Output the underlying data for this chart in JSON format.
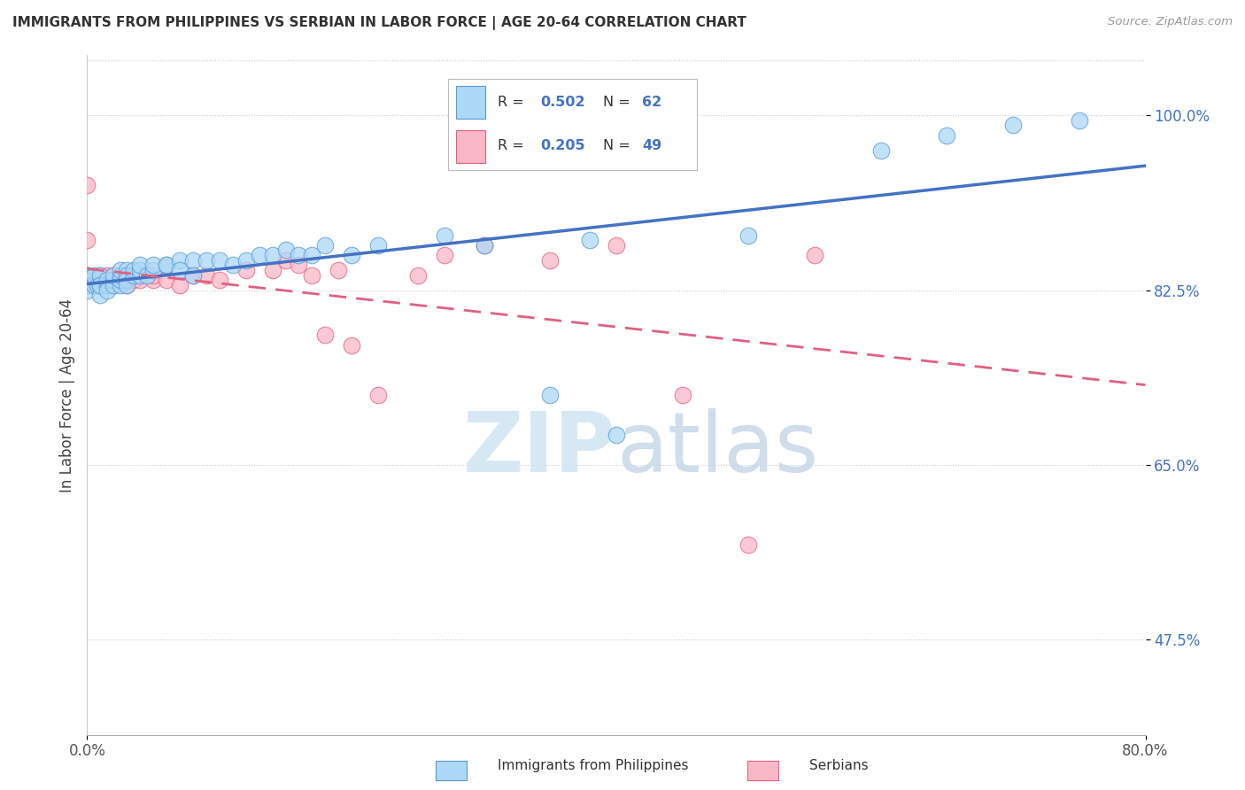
{
  "title": "IMMIGRANTS FROM PHILIPPINES VS SERBIAN IN LABOR FORCE | AGE 20-64 CORRELATION CHART",
  "source": "Source: ZipAtlas.com",
  "ylabel": "In Labor Force | Age 20-64",
  "x_min": 0.0,
  "x_max": 0.8,
  "y_min": 0.38,
  "y_max": 1.06,
  "y_ticks": [
    0.475,
    0.65,
    0.825,
    1.0
  ],
  "y_tick_labels": [
    "47.5%",
    "65.0%",
    "82.5%",
    "100.0%"
  ],
  "x_ticks": [
    0.0,
    0.8
  ],
  "x_tick_labels": [
    "0.0%",
    "80.0%"
  ],
  "philippines_R": 0.502,
  "philippines_N": 62,
  "serbian_R": 0.205,
  "serbian_N": 49,
  "philippines_color": "#add8f7",
  "serbian_color": "#f9b8c8",
  "philippines_edge_color": "#5b9bd5",
  "serbian_edge_color": "#e86080",
  "philippines_line_color": "#4472c4",
  "serbian_line_color": "#e06080",
  "R_val_color": "#4472c4",
  "N_val_color": "#4472c4",
  "watermark_color": "#d8e8f4",
  "philippines_x": [
    0.0,
    0.0,
    0.0,
    0.0,
    0.0,
    0.005,
    0.005,
    0.008,
    0.01,
    0.01,
    0.01,
    0.01,
    0.015,
    0.015,
    0.015,
    0.02,
    0.02,
    0.02,
    0.025,
    0.025,
    0.025,
    0.025,
    0.03,
    0.03,
    0.03,
    0.03,
    0.035,
    0.035,
    0.04,
    0.04,
    0.04,
    0.045,
    0.05,
    0.05,
    0.06,
    0.06,
    0.07,
    0.07,
    0.08,
    0.08,
    0.09,
    0.1,
    0.11,
    0.12,
    0.13,
    0.14,
    0.15,
    0.16,
    0.17,
    0.18,
    0.2,
    0.22,
    0.27,
    0.3,
    0.35,
    0.38,
    0.4,
    0.5,
    0.6,
    0.65,
    0.7,
    0.75
  ],
  "philippines_y": [
    0.84,
    0.83,
    0.84,
    0.83,
    0.825,
    0.83,
    0.84,
    0.83,
    0.83,
    0.82,
    0.84,
    0.83,
    0.83,
    0.835,
    0.825,
    0.835,
    0.83,
    0.84,
    0.83,
    0.835,
    0.84,
    0.845,
    0.845,
    0.84,
    0.835,
    0.83,
    0.84,
    0.845,
    0.84,
    0.845,
    0.85,
    0.84,
    0.845,
    0.85,
    0.85,
    0.85,
    0.855,
    0.845,
    0.855,
    0.84,
    0.855,
    0.855,
    0.85,
    0.855,
    0.86,
    0.86,
    0.865,
    0.86,
    0.86,
    0.87,
    0.86,
    0.87,
    0.88,
    0.87,
    0.72,
    0.875,
    0.68,
    0.88,
    0.965,
    0.98,
    0.99,
    0.995
  ],
  "serbian_x": [
    0.0,
    0.0,
    0.0,
    0.0,
    0.0,
    0.0,
    0.005,
    0.005,
    0.008,
    0.01,
    0.01,
    0.015,
    0.015,
    0.015,
    0.02,
    0.02,
    0.02,
    0.025,
    0.025,
    0.03,
    0.03,
    0.03,
    0.035,
    0.04,
    0.04,
    0.05,
    0.05,
    0.06,
    0.07,
    0.08,
    0.09,
    0.1,
    0.12,
    0.14,
    0.15,
    0.16,
    0.17,
    0.18,
    0.19,
    0.2,
    0.22,
    0.25,
    0.27,
    0.3,
    0.35,
    0.4,
    0.45,
    0.5,
    0.55
  ],
  "serbian_y": [
    0.93,
    0.875,
    0.84,
    0.84,
    0.835,
    0.83,
    0.835,
    0.83,
    0.83,
    0.84,
    0.835,
    0.835,
    0.83,
    0.84,
    0.84,
    0.83,
    0.835,
    0.84,
    0.835,
    0.835,
    0.83,
    0.84,
    0.835,
    0.84,
    0.835,
    0.835,
    0.84,
    0.835,
    0.83,
    0.84,
    0.84,
    0.835,
    0.845,
    0.845,
    0.855,
    0.85,
    0.84,
    0.78,
    0.845,
    0.77,
    0.72,
    0.84,
    0.86,
    0.87,
    0.855,
    0.87,
    0.72,
    0.57,
    0.86
  ]
}
